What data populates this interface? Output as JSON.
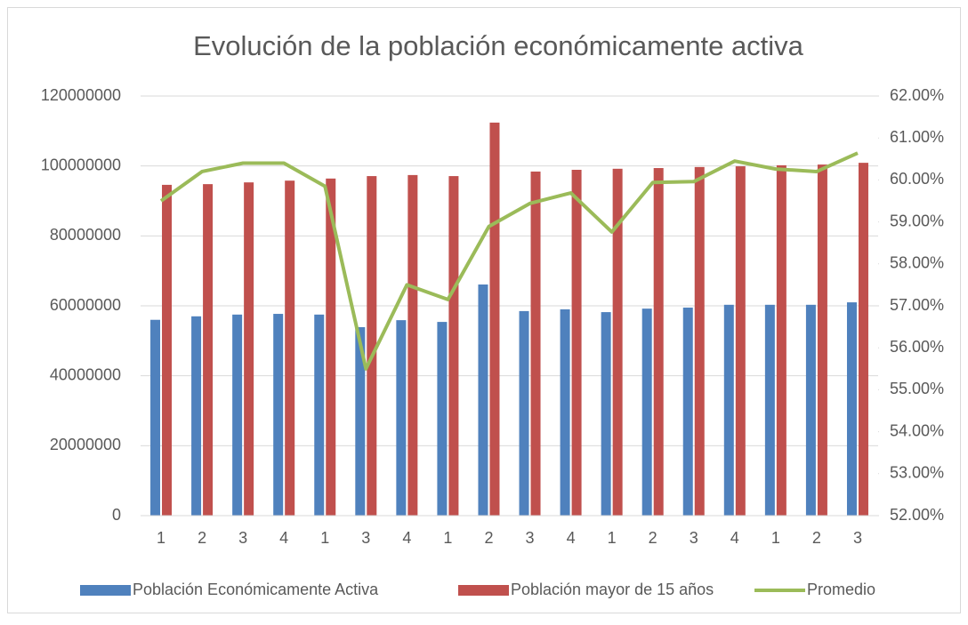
{
  "chart_data": {
    "type": "bar-line",
    "title": "Evolución de la población económicamente activa",
    "categories": [
      "1",
      "2",
      "3",
      "4",
      "1",
      "3",
      "4",
      "1",
      "2",
      "3",
      "4",
      "1",
      "2",
      "3",
      "4",
      "1",
      "2",
      "3"
    ],
    "series": [
      {
        "name": "Población Económicamente Activa",
        "color": "#4f81bd",
        "type": "bar",
        "values": [
          56000000,
          57000000,
          57500000,
          57700000,
          57500000,
          53900000,
          55900000,
          55400000,
          66100000,
          58500000,
          59000000,
          58200000,
          59200000,
          59500000,
          60300000,
          60300000,
          60300000,
          61000000
        ]
      },
      {
        "name": "Población mayor de 15 años",
        "color": "#c0504d",
        "type": "bar",
        "values": [
          94600000,
          94800000,
          95300000,
          95800000,
          96400000,
          97100000,
          97400000,
          97100000,
          112400000,
          98400000,
          98900000,
          99200000,
          99400000,
          99700000,
          99900000,
          100200000,
          100400000,
          100900000
        ]
      },
      {
        "name": "Promedio",
        "color": "#9bbb59",
        "type": "line",
        "axis": "y2",
        "values": [
          59.5,
          60.2,
          60.4,
          60.4,
          59.85,
          55.5,
          57.5,
          57.15,
          58.89,
          59.44,
          59.69,
          58.76,
          59.94,
          59.96,
          60.45,
          60.26,
          60.2,
          60.64
        ]
      }
    ],
    "ylim": [
      0,
      120000000
    ],
    "yticks": [
      0,
      20000000,
      40000000,
      60000000,
      80000000,
      100000000,
      120000000
    ],
    "y2lim": [
      52,
      62
    ],
    "y2ticks": [
      {
        "value": 52,
        "label": "52.00%"
      },
      {
        "value": 53,
        "label": "53.00%"
      },
      {
        "value": 54,
        "label": "54.00%"
      },
      {
        "value": 55,
        "label": "55.00%"
      },
      {
        "value": 56,
        "label": "56.00%"
      },
      {
        "value": 57,
        "label": "57.00%"
      },
      {
        "value": 58,
        "label": "58.00%"
      },
      {
        "value": 59,
        "label": "59.00%"
      },
      {
        "value": 60,
        "label": "60.00%"
      },
      {
        "value": 61,
        "label": "61.00%"
      },
      {
        "value": 62,
        "label": "62.00%"
      }
    ],
    "grid": true,
    "legend": "bottom"
  }
}
